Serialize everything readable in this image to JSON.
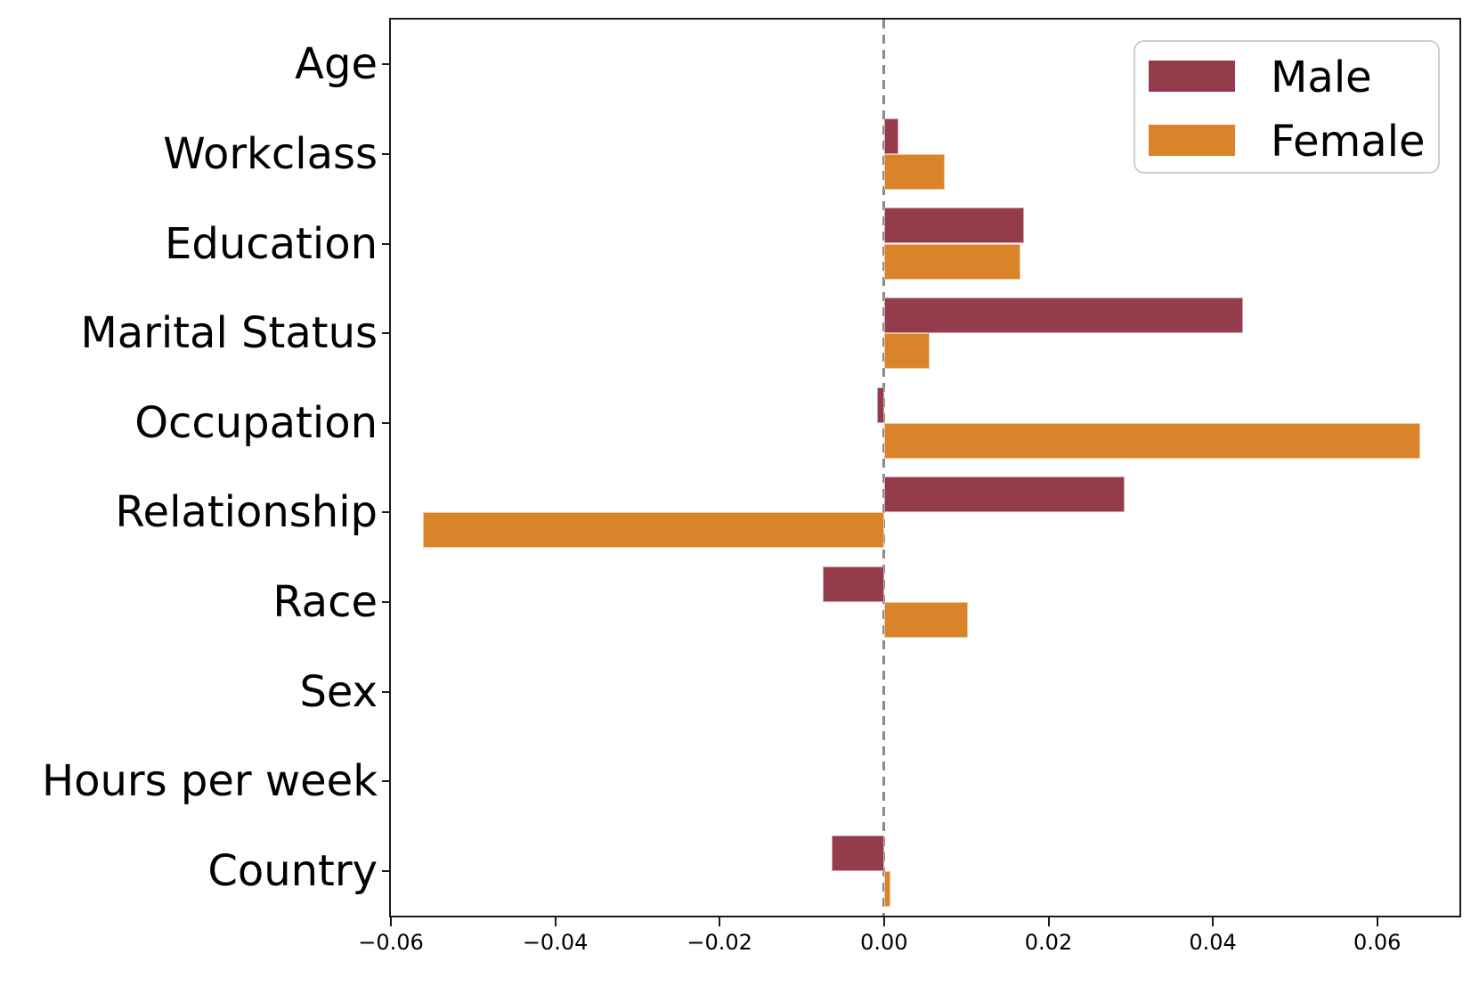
{
  "chart_data": {
    "type": "bar",
    "orientation": "horizontal",
    "categories": [
      "Age",
      "Workclass",
      "Education",
      "Marital Status",
      "Occupation",
      "Relationship",
      "Race",
      "Sex",
      "Hours per week",
      "Country"
    ],
    "series": [
      {
        "name": "Male",
        "color": "#943c4c",
        "values": [
          0.0,
          0.0018,
          0.017,
          0.0437,
          -0.0009,
          0.0293,
          -0.0075,
          0.0,
          0.0,
          -0.0064
        ]
      },
      {
        "name": "Female",
        "color": "#d9842b",
        "values": [
          0.0,
          0.0074,
          0.0166,
          0.0055,
          0.0652,
          -0.0561,
          0.0102,
          0.0,
          0.0,
          0.0008
        ]
      }
    ],
    "xlim": [
      -0.06,
      0.07
    ],
    "xticks": [
      -0.06,
      -0.04,
      -0.02,
      0.0,
      0.02,
      0.04,
      0.06
    ],
    "xtick_labels": [
      "−0.06",
      "−0.04",
      "−0.02",
      "0.00",
      "0.02",
      "0.04",
      "0.06"
    ],
    "zero_line": {
      "x": 0.0,
      "style": "dashed",
      "color": "#8a8a8a"
    },
    "bar_height_fraction": 0.4,
    "grid": false,
    "legend": {
      "position": "upper right",
      "entries": [
        {
          "label": "Male",
          "color": "#943c4c"
        },
        {
          "label": "Female",
          "color": "#d9842b"
        }
      ]
    }
  }
}
